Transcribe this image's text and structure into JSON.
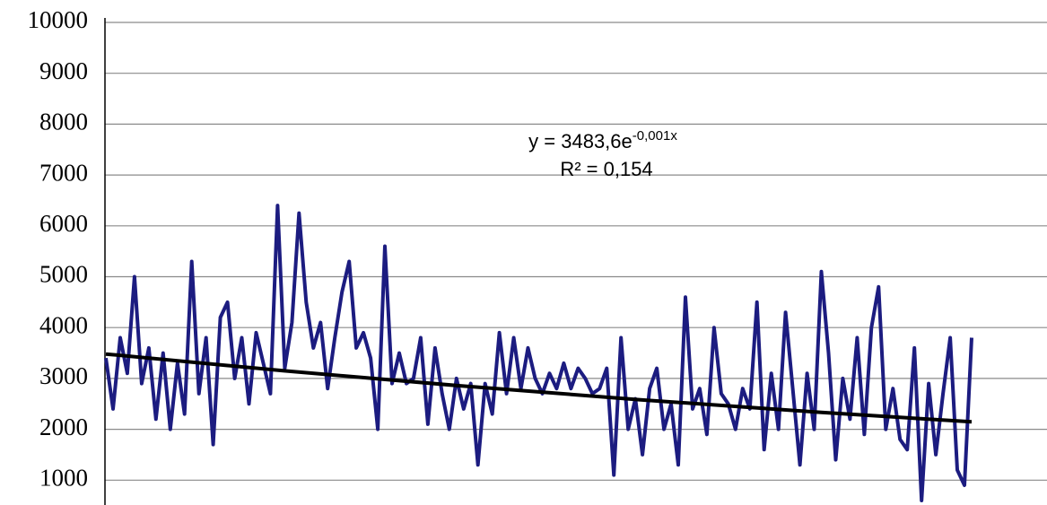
{
  "chart_data": {
    "type": "line",
    "x": [
      1,
      5,
      9,
      13,
      17,
      21,
      25,
      29,
      33,
      37,
      41,
      45,
      49,
      53,
      57,
      61,
      65,
      69,
      73,
      77,
      81,
      85,
      89,
      93,
      97,
      101,
      105,
      109,
      113,
      117,
      121,
      125,
      129,
      133,
      137,
      141,
      145,
      149,
      153,
      157,
      161,
      165,
      169,
      173,
      177,
      181,
      185,
      189,
      193,
      197,
      201,
      205,
      209,
      213,
      217,
      221,
      225,
      229,
      233,
      237,
      241,
      245,
      249,
      253,
      257,
      261,
      265,
      269,
      273,
      277,
      281,
      285,
      289,
      293,
      297,
      301,
      305,
      309,
      313,
      317,
      321,
      325,
      329,
      333,
      337,
      341,
      345,
      349,
      353,
      357,
      361,
      365,
      369,
      373,
      377,
      381,
      385,
      389,
      393,
      397,
      401,
      405,
      409,
      413,
      417,
      421,
      425,
      429,
      433,
      437,
      441,
      445,
      449,
      453,
      457,
      461,
      465,
      469,
      473,
      477,
      481,
      485
    ],
    "values": [
      3400,
      2400,
      3800,
      3100,
      5000,
      2900,
      3600,
      2200,
      3500,
      2000,
      3300,
      2300,
      5300,
      2700,
      3800,
      1700,
      4200,
      4500,
      3000,
      3800,
      2500,
      3900,
      3300,
      2700,
      6400,
      3200,
      4100,
      6250,
      4500,
      3600,
      4100,
      2800,
      3800,
      4700,
      5300,
      3600,
      3900,
      3400,
      2000,
      5600,
      2900,
      3500,
      2900,
      3000,
      3800,
      2100,
      3600,
      2700,
      2000,
      3000,
      2400,
      2900,
      1300,
      2900,
      2300,
      3900,
      2700,
      3800,
      2800,
      3600,
      3000,
      2700,
      3100,
      2800,
      3300,
      2800,
      3200,
      3000,
      2700,
      2800,
      3200,
      1100,
      3800,
      2000,
      2600,
      1500,
      2800,
      3200,
      2000,
      2500,
      1300,
      4600,
      2400,
      2800,
      1900,
      4000,
      2700,
      2500,
      2000,
      2800,
      2400,
      4500,
      1600,
      3100,
      2000,
      4300,
      2800,
      1300,
      3100,
      2000,
      5100,
      3500,
      1400,
      3000,
      2200,
      3800,
      1900,
      4000,
      4800,
      2000,
      2800,
      1800,
      1600,
      3600,
      600,
      2900,
      1500,
      2700,
      3800,
      1200,
      900,
      3800
    ],
    "color": "#1c1c80",
    "trendline": {
      "x": [
        1,
        100,
        200,
        300,
        400,
        485
      ],
      "values": [
        3480,
        3152,
        2852,
        2581,
        2335,
        2146
      ],
      "color": "#000000"
    },
    "equation_base": "y = 3483,6e",
    "equation_exponent": "-0,001x",
    "r_squared": "R² = 0,154",
    "xlim": [
      1,
      485
    ],
    "ylim": [
      0,
      10000
    ],
    "yticks": [
      1000,
      2000,
      3000,
      4000,
      5000,
      6000,
      7000,
      8000,
      9000,
      10000
    ],
    "grid": true
  }
}
